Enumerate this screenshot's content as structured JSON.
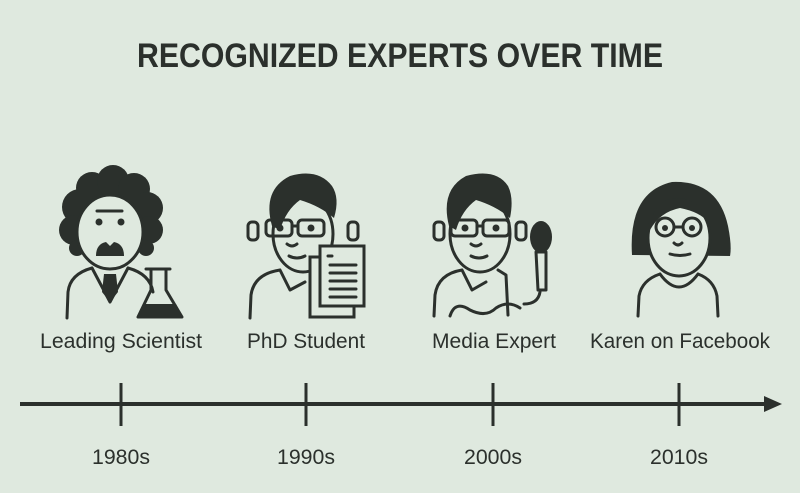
{
  "title": "RECOGNIZED EXPERTS OVER TIME",
  "colors": {
    "background": "#dfe9df",
    "ink": "#2b302c"
  },
  "experts": [
    {
      "label": "Leading Scientist",
      "decade": "1980s",
      "icon": "scientist-with-flask"
    },
    {
      "label": "PhD Student",
      "decade": "1990s",
      "icon": "student-with-papers"
    },
    {
      "label": "Media Expert",
      "decade": "2000s",
      "icon": "person-with-microphone"
    },
    {
      "label": "Karen on Facebook",
      "decade": "2010s",
      "icon": "woman-with-glasses"
    }
  ]
}
